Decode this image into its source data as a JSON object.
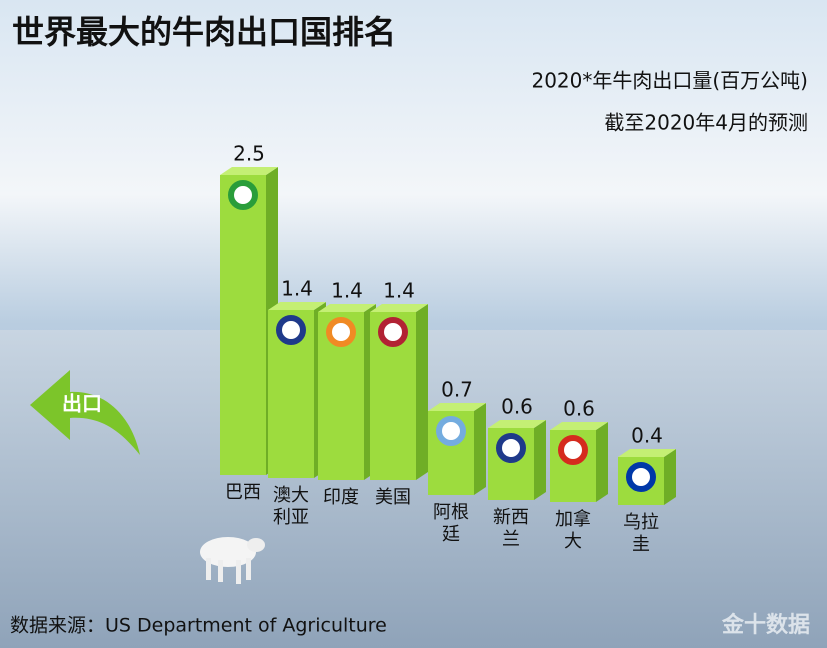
{
  "chart_data": {
    "type": "bar",
    "title": "世界最大的牛肉出口国排名",
    "subtitle": [
      "2020*年牛肉出口量(百万公吨)",
      "截至2020年4月的预测"
    ],
    "categories": [
      "巴西",
      "澳大利亚",
      "印度",
      "美国",
      "阿根廷",
      "新西兰",
      "加拿大",
      "乌拉圭"
    ],
    "values": [
      2.5,
      1.4,
      1.4,
      1.4,
      0.7,
      0.6,
      0.6,
      0.4
    ],
    "color": "#9ddc3e",
    "annotation": "出口",
    "source": "数据来源：US Department of Agriculture",
    "watermark": "金十数据"
  }
}
